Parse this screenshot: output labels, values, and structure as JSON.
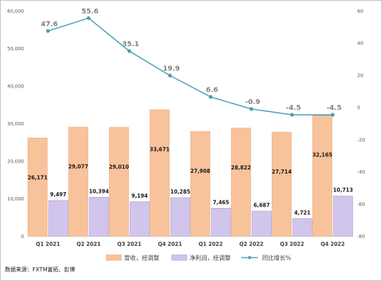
{
  "chart_data": {
    "type": "bar",
    "categories": [
      "Q1 2021",
      "Q2 2021",
      "Q3 2021",
      "Q4 2021",
      "Q1 2022",
      "Q2 2022",
      "Q3 2022",
      "Q4 2022"
    ],
    "series": [
      {
        "name": "营收，经调整",
        "type": "bar",
        "axis": "left",
        "color": "#f8c39b",
        "values": [
          26171,
          29077,
          29010,
          33671,
          27908,
          28822,
          27714,
          32165
        ],
        "labels": [
          "26,171",
          "29,077",
          "29,010",
          "33,671",
          "27,908",
          "28,822",
          "27,714",
          "32,165"
        ]
      },
      {
        "name": "净利润，经调整",
        "type": "bar",
        "axis": "left",
        "color": "#d2c5ec",
        "values": [
          9497,
          10394,
          9194,
          10285,
          7465,
          6687,
          4721,
          10713
        ],
        "labels": [
          "9,497",
          "10,394",
          "9,194",
          "10,285",
          "7,465",
          "6,687",
          "4,721",
          "10,713"
        ]
      },
      {
        "name": "同比增长%",
        "type": "line",
        "axis": "right",
        "color": "#4aa3b8",
        "values": [
          47.6,
          55.6,
          35.1,
          19.9,
          6.6,
          -0.9,
          -4.5,
          -4.5
        ],
        "labels": [
          "47.6",
          "55.6",
          "35.1",
          "19.9",
          "6.6",
          "-0.9",
          "-4.5",
          "-4.5"
        ]
      }
    ],
    "yleft": {
      "min": 0,
      "max": 60000,
      "ticks": [
        "0",
        "10,000",
        "20,000",
        "30,000",
        "40,000",
        "50,000",
        "60,000"
      ]
    },
    "yright": {
      "min": -80,
      "max": 60,
      "ticks": [
        "-80",
        "-60",
        "-40",
        "-20",
        "0",
        "20",
        "40",
        "60"
      ]
    },
    "legend": "bottom",
    "grid": false
  },
  "source_note": "数据来源：FXTM富拓、彭博"
}
